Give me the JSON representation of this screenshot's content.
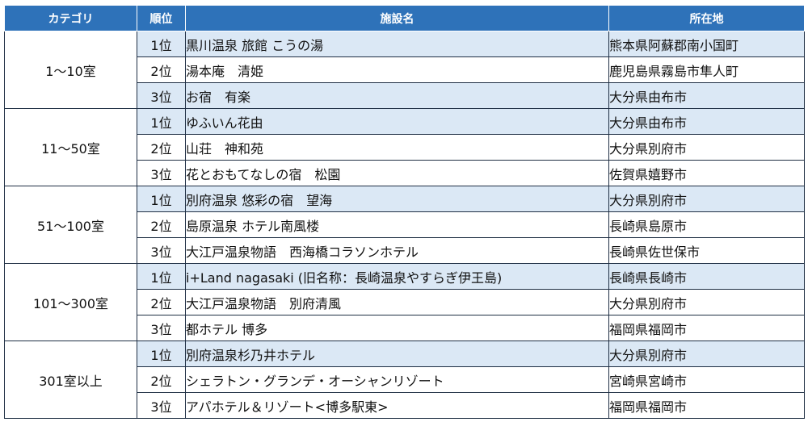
{
  "headers": {
    "category": "カテゴリ",
    "rank": "順位",
    "name": "施設名",
    "location": "所在地"
  },
  "groups": [
    {
      "category": "1～10室",
      "rows": [
        {
          "rank": "1位",
          "name": "黒川温泉 旅館 こうの湯",
          "location": "熊本県阿蘇郡南小国町"
        },
        {
          "rank": "2位",
          "name": "湯本庵　清姫",
          "location": "鹿児島県霧島市隼人町"
        },
        {
          "rank": "3位",
          "name": "お宿　有楽",
          "location": "大分県由布市"
        }
      ]
    },
    {
      "category": "11～50室",
      "rows": [
        {
          "rank": "1位",
          "name": "ゆふいん花由",
          "location": "大分県由布市"
        },
        {
          "rank": "2位",
          "name": "山荘　神和苑",
          "location": "大分県別府市"
        },
        {
          "rank": "3位",
          "name": "花とおもてなしの宿　松園",
          "location": "佐賀県嬉野市"
        }
      ]
    },
    {
      "category": "51～100室",
      "rows": [
        {
          "rank": "1位",
          "name": "別府温泉 悠彩の宿　望海",
          "location": "大分県別府市"
        },
        {
          "rank": "2位",
          "name": "島原温泉 ホテル南風楼",
          "location": "長崎県島原市"
        },
        {
          "rank": "3位",
          "name": "大江戸温泉物語　西海橋コラソンホテル",
          "location": "長崎県佐世保市"
        }
      ]
    },
    {
      "category": "101～300室",
      "rows": [
        {
          "rank": "1位",
          "name": "i+Land nagasaki (旧名称：長崎温泉やすらぎ伊王島)",
          "location": "長崎県長崎市"
        },
        {
          "rank": "2位",
          "name": "大江戸温泉物語　別府清風",
          "location": "大分県別府市"
        },
        {
          "rank": "3位",
          "name": "都ホテル 博多",
          "location": "福岡県福岡市"
        }
      ]
    },
    {
      "category": "301室以上",
      "rows": [
        {
          "rank": "1位",
          "name": "別府温泉杉乃井ホテル",
          "location": "大分県別府市"
        },
        {
          "rank": "2位",
          "name": "シェラトン・グランデ・オーシャンリゾート",
          "location": "宮崎県宮崎市"
        },
        {
          "rank": "3位",
          "name": "アパホテル＆リゾート<博多駅東>",
          "location": "福岡県福岡市"
        }
      ]
    }
  ],
  "colors": {
    "header_bg": "#2e72b9",
    "header_text": "#ffffff",
    "row_shade": "#dbe8f5",
    "border": "#1f2f44"
  }
}
